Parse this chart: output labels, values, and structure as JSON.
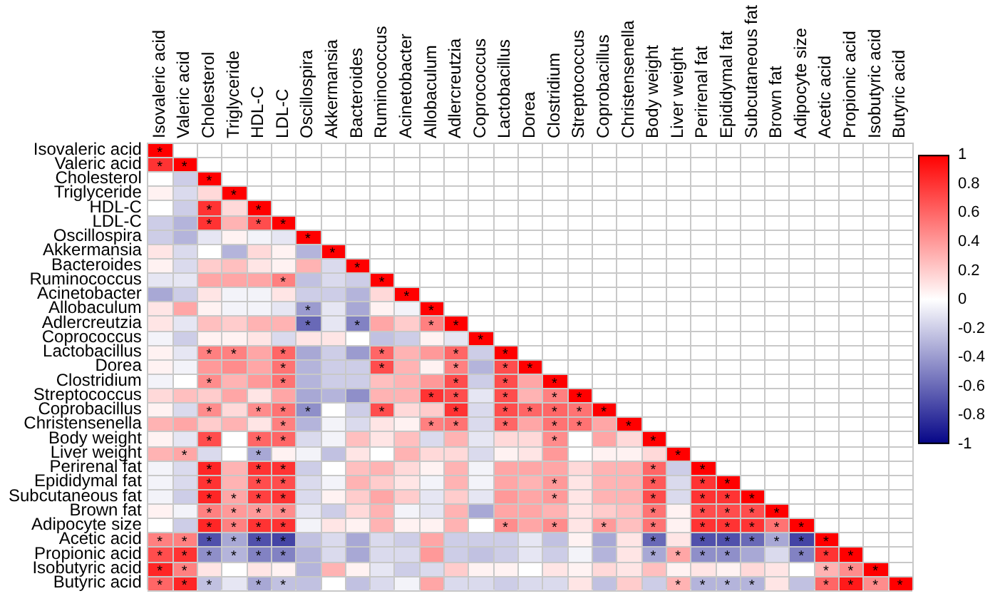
{
  "chart_data": {
    "type": "heatmap",
    "grid": true,
    "clim": [
      -1,
      1
    ],
    "cticks": [
      -1,
      -0.8,
      -0.6,
      -0.4,
      -0.2,
      0,
      0.2,
      0.4,
      0.6,
      0.8,
      1
    ],
    "categories": [
      "Isovaleric acid",
      "Valeric acid",
      "Cholesterol",
      "Triglyceride",
      "HDL-C",
      "LDL-C",
      "Oscillospira",
      "Akkermansia",
      "Bacteroides",
      "Ruminococcus",
      "Acinetobacter",
      "Allobaculum",
      "Adlercreutzia",
      "Coprococcus",
      "Lactobacillus",
      "Dorea",
      "Clostridium",
      "Streptococcus",
      "Coprobacillus",
      "Christensenella",
      "Body weight",
      "Liver weight",
      "Perirenal fat",
      "Epididymal fat",
      "Subcutaneous fat",
      "Brown fat",
      "Adipocyte size",
      "Acetic acid",
      "Propionic acid",
      "Isobutyric acid",
      "Butyric acid"
    ],
    "y_categories": [
      "Isovaleric acid",
      "Valeric acid",
      "Cholesterol",
      "Triglyceride",
      "HDL-C",
      "LDL-C",
      "Oscillospira",
      "Akkermansia",
      "Bacteroides",
      "Ruminococcus",
      "Acinetobacter",
      "Allobaculum",
      "Adlercreutzia",
      "Coprococcus",
      "Lactobacillus",
      "Dorea",
      "Clostridium",
      "Streptococcus",
      "Coprobacillus",
      "Christensenella",
      "Body weight",
      "Liver weight",
      "Perirenal fat",
      "Epididymal fat",
      "Subcutaneous fat",
      "Brown fat",
      "Adipocyte size",
      "Acetic acid",
      "Propionic acid",
      "Isobutyric acid",
      "Butyric acid"
    ],
    "cells": [
      [
        1,
        null,
        null,
        null,
        null,
        null,
        null,
        null,
        null,
        null,
        null,
        null,
        null,
        null,
        null,
        null,
        null,
        null,
        null,
        null,
        null,
        null,
        null,
        null,
        null,
        null,
        null,
        null,
        null,
        null,
        null
      ],
      [
        0.8,
        1,
        null,
        null,
        null,
        null,
        null,
        null,
        null,
        null,
        null,
        null,
        null,
        null,
        null,
        null,
        null,
        null,
        null,
        null,
        null,
        null,
        null,
        null,
        null,
        null,
        null,
        null,
        null,
        null,
        null
      ],
      [
        0,
        -0.2,
        1,
        null,
        null,
        null,
        null,
        null,
        null,
        null,
        null,
        null,
        null,
        null,
        null,
        null,
        null,
        null,
        null,
        null,
        null,
        null,
        null,
        null,
        null,
        null,
        null,
        null,
        null,
        null,
        null
      ],
      [
        0.05,
        -0.15,
        0.15,
        1,
        null,
        null,
        null,
        null,
        null,
        null,
        null,
        null,
        null,
        null,
        null,
        null,
        null,
        null,
        null,
        null,
        null,
        null,
        null,
        null,
        null,
        null,
        null,
        null,
        null,
        null,
        null
      ],
      [
        0,
        -0.2,
        0.8,
        0.15,
        1,
        null,
        null,
        null,
        null,
        null,
        null,
        null,
        null,
        null,
        null,
        null,
        null,
        null,
        null,
        null,
        null,
        null,
        null,
        null,
        null,
        null,
        null,
        null,
        null,
        null,
        null
      ],
      [
        -0.2,
        -0.3,
        0.8,
        0.3,
        0.7,
        1,
        null,
        null,
        null,
        null,
        null,
        null,
        null,
        null,
        null,
        null,
        null,
        null,
        null,
        null,
        null,
        null,
        null,
        null,
        null,
        null,
        null,
        null,
        null,
        null,
        null
      ],
      [
        -0.2,
        -0.3,
        -0.1,
        0.05,
        -0.05,
        -0.1,
        1,
        null,
        null,
        null,
        null,
        null,
        null,
        null,
        null,
        null,
        null,
        null,
        null,
        null,
        null,
        null,
        null,
        null,
        null,
        null,
        null,
        null,
        null,
        null,
        null
      ],
      [
        0.1,
        -0.15,
        0,
        -0.3,
        0.15,
        0.05,
        -0.3,
        1,
        null,
        null,
        null,
        null,
        null,
        null,
        null,
        null,
        null,
        null,
        null,
        null,
        null,
        null,
        null,
        null,
        null,
        null,
        null,
        null,
        null,
        null,
        null
      ],
      [
        0.05,
        -0.15,
        0.2,
        0.25,
        0.1,
        0.05,
        0.3,
        -0.15,
        1,
        null,
        null,
        null,
        null,
        null,
        null,
        null,
        null,
        null,
        null,
        null,
        null,
        null,
        null,
        null,
        null,
        null,
        null,
        null,
        null,
        null,
        null
      ],
      [
        -0.1,
        -0.1,
        0.35,
        0.35,
        0.35,
        0.5,
        -0.25,
        -0.15,
        -0.2,
        1,
        null,
        null,
        null,
        null,
        null,
        null,
        null,
        null,
        null,
        null,
        null,
        null,
        null,
        null,
        null,
        null,
        null,
        null,
        null,
        null,
        null
      ],
      [
        -0.35,
        -0.2,
        0.1,
        -0.05,
        -0.05,
        0.1,
        -0.2,
        -0.2,
        -0.3,
        0.15,
        1,
        null,
        null,
        null,
        null,
        null,
        null,
        null,
        null,
        null,
        null,
        null,
        null,
        null,
        null,
        null,
        null,
        null,
        null,
        null,
        null
      ],
      [
        0.1,
        0.35,
        0.05,
        -0.05,
        -0.05,
        -0.1,
        -0.4,
        -0.1,
        -0.35,
        0.05,
        -0.05,
        1,
        null,
        null,
        null,
        null,
        null,
        null,
        null,
        null,
        null,
        null,
        null,
        null,
        null,
        null,
        null,
        null,
        null,
        null,
        null
      ],
      [
        0.1,
        -0.1,
        0.25,
        0.2,
        0.3,
        0.3,
        -0.6,
        -0.1,
        -0.5,
        0.35,
        0.2,
        0.5,
        1,
        null,
        null,
        null,
        null,
        null,
        null,
        null,
        null,
        null,
        null,
        null,
        null,
        null,
        null,
        null,
        null,
        null,
        null
      ],
      [
        -0.05,
        -0.2,
        0.05,
        0.05,
        0.1,
        -0.15,
        0.1,
        0.1,
        0,
        -0.25,
        -0.2,
        0.05,
        -0.1,
        1,
        null,
        null,
        null,
        null,
        null,
        null,
        null,
        null,
        null,
        null,
        null,
        null,
        null,
        null,
        null,
        null,
        null
      ],
      [
        0.05,
        -0.1,
        0.5,
        0.5,
        0.35,
        0.6,
        -0.35,
        -0.2,
        -0.4,
        0.6,
        0.3,
        0.4,
        0.6,
        -0.2,
        1,
        null,
        null,
        null,
        null,
        null,
        null,
        null,
        null,
        null,
        null,
        null,
        null,
        null,
        null,
        null,
        null
      ],
      [
        0.05,
        -0.05,
        0.4,
        0.45,
        0.35,
        0.55,
        -0.3,
        -0.2,
        -0.2,
        0.7,
        0.3,
        0.05,
        0.5,
        -0.3,
        0.7,
        1,
        null,
        null,
        null,
        null,
        null,
        null,
        null,
        null,
        null,
        null,
        null,
        null,
        null,
        null,
        null
      ],
      [
        -0.05,
        0,
        0.45,
        0.3,
        0.4,
        0.55,
        -0.3,
        -0.2,
        -0.2,
        0.25,
        0.3,
        0.4,
        0.7,
        -0.2,
        0.7,
        0.35,
        1,
        null,
        null,
        null,
        null,
        null,
        null,
        null,
        null,
        null,
        null,
        null,
        null,
        null,
        null
      ],
      [
        0.15,
        0.25,
        0.2,
        0.35,
        0.1,
        0.35,
        -0.35,
        -0.3,
        -0.45,
        0.3,
        0.3,
        0.8,
        0.7,
        -0.1,
        0.7,
        0.3,
        0.5,
        1,
        null,
        null,
        null,
        null,
        null,
        null,
        null,
        null,
        null,
        null,
        null,
        null,
        null
      ],
      [
        0.05,
        -0.15,
        0.45,
        0.15,
        0.45,
        0.55,
        -0.45,
        0,
        -0.2,
        0.7,
        0.15,
        0.2,
        0.8,
        -0.15,
        0.7,
        0.6,
        0.6,
        0.55,
        1,
        null,
        null,
        null,
        null,
        null,
        null,
        null,
        null,
        null,
        null,
        null,
        null
      ],
      [
        0.3,
        0.35,
        0.2,
        0.3,
        0.1,
        0.5,
        -0.3,
        -0.05,
        -0.15,
        0.1,
        0.05,
        0.5,
        0.55,
        -0.15,
        0.6,
        0.35,
        0.55,
        0.55,
        0.35,
        1,
        null,
        null,
        null,
        null,
        null,
        null,
        null,
        null,
        null,
        null,
        null
      ],
      [
        0.05,
        -0.1,
        0.7,
        0,
        0.6,
        0.6,
        -0.15,
        -0.05,
        0.25,
        0.1,
        0.25,
        -0.15,
        0.3,
        -0.1,
        0.15,
        0.15,
        0.45,
        0,
        0.35,
        0.15,
        1,
        null,
        null,
        null,
        null,
        null,
        null,
        null,
        null,
        null,
        null
      ],
      [
        0.3,
        0.35,
        -0.15,
        0,
        -0.35,
        0.05,
        -0.05,
        -0.25,
        0.1,
        0,
        0.3,
        0.15,
        0.15,
        -0.15,
        0.05,
        0.1,
        0.4,
        0,
        0.05,
        0.05,
        0.15,
        1,
        null,
        null,
        null,
        null,
        null,
        null,
        null,
        null,
        null
      ],
      [
        -0.05,
        -0.15,
        0.85,
        0.3,
        0.8,
        0.8,
        -0.2,
        0,
        0.25,
        0.3,
        0.15,
        0.05,
        0.3,
        -0.05,
        0.35,
        0.35,
        0.35,
        0.15,
        0.3,
        0.3,
        0.6,
        -0.2,
        1,
        null,
        null,
        null,
        null,
        null,
        null,
        null,
        null
      ],
      [
        -0.05,
        -0.15,
        0.8,
        0.3,
        0.7,
        0.7,
        -0.15,
        -0.05,
        0.3,
        0.2,
        0.1,
        -0.05,
        0.3,
        -0.05,
        0.35,
        0.3,
        0.4,
        0.1,
        0.3,
        0.3,
        0.65,
        -0.15,
        0.8,
        1,
        null,
        null,
        null,
        null,
        null,
        null,
        null
      ],
      [
        -0.05,
        -0.2,
        0.85,
        0.35,
        0.75,
        0.8,
        -0.15,
        0.05,
        0.2,
        0.35,
        0.2,
        -0.1,
        0.2,
        -0.1,
        0.4,
        0.35,
        0.4,
        0.1,
        0.3,
        0.3,
        0.7,
        -0.15,
        0.8,
        0.8,
        1,
        null,
        null,
        null,
        null,
        null,
        null
      ],
      [
        0.05,
        -0.05,
        0.5,
        0.4,
        0.4,
        0.45,
        -0.1,
        -0.2,
        0.15,
        0.3,
        -0.05,
        -0.1,
        0.3,
        -0.35,
        0.35,
        0.35,
        0.3,
        0.1,
        0.2,
        0.25,
        0.55,
        0.05,
        0.7,
        0.7,
        0.7,
        1,
        null,
        null,
        null,
        null,
        null
      ],
      [
        0,
        -0.2,
        0.85,
        0.5,
        0.8,
        0.8,
        -0.05,
        0.1,
        0.05,
        0.3,
        0.05,
        0.05,
        0.3,
        0,
        0.45,
        0.35,
        0.45,
        0.1,
        0.4,
        0.25,
        0.55,
        0.05,
        0.8,
        0.8,
        0.8,
        0.55,
        1,
        null,
        null,
        null,
        null
      ],
      [
        0.5,
        0.5,
        -0.7,
        -0.35,
        -0.7,
        -0.75,
        -0.25,
        -0.15,
        -0.35,
        -0.15,
        -0.2,
        0.35,
        -0.2,
        -0.2,
        -0.2,
        -0.1,
        -0.25,
        0.05,
        -0.35,
        0.1,
        -0.6,
        0.1,
        -0.7,
        -0.7,
        -0.6,
        -0.35,
        -0.75,
        1,
        null,
        null,
        null
      ],
      [
        0.7,
        0.8,
        -0.45,
        -0.3,
        -0.5,
        -0.5,
        -0.3,
        -0.15,
        -0.35,
        -0.15,
        -0.15,
        0.4,
        -0.2,
        -0.25,
        -0.2,
        -0.1,
        -0.2,
        -0.05,
        -0.3,
        0.1,
        -0.35,
        0.35,
        -0.45,
        -0.45,
        -0.35,
        -0.15,
        -0.5,
        0.8,
        1,
        null,
        null
      ],
      [
        0.85,
        0.5,
        0.1,
        0,
        0.1,
        0.05,
        -0.3,
        0.3,
        0.05,
        -0.1,
        -0.2,
        -0.15,
        0.2,
        0.05,
        0.05,
        0,
        0.1,
        0.05,
        0.15,
        0.1,
        0.25,
        0.05,
        0.1,
        0.05,
        0.15,
        0.1,
        0,
        0.3,
        0.45,
        1,
        null
      ],
      [
        0.6,
        0.85,
        -0.25,
        -0.1,
        -0.35,
        -0.25,
        -0.25,
        0,
        -0.25,
        -0.15,
        -0.05,
        0.35,
        -0.15,
        -0.15,
        -0.2,
        -0.15,
        -0.15,
        0.1,
        -0.25,
        0.2,
        -0.2,
        0.3,
        -0.3,
        -0.3,
        -0.3,
        0.1,
        -0.25,
        0.6,
        0.9,
        0.45,
        1
      ]
    ],
    "cell_labels": [
      [
        "*",
        null,
        null,
        null,
        null,
        null,
        null,
        null,
        null,
        null,
        null,
        null,
        null,
        null,
        null,
        null,
        null,
        null,
        null,
        null,
        null,
        null,
        null,
        null,
        null,
        null,
        null,
        null,
        null,
        null,
        null
      ],
      [
        "*",
        "*",
        null,
        null,
        null,
        null,
        null,
        null,
        null,
        null,
        null,
        null,
        null,
        null,
        null,
        null,
        null,
        null,
        null,
        null,
        null,
        null,
        null,
        null,
        null,
        null,
        null,
        null,
        null,
        null,
        null
      ],
      [
        null,
        null,
        "*",
        null,
        null,
        null,
        null,
        null,
        null,
        null,
        null,
        null,
        null,
        null,
        null,
        null,
        null,
        null,
        null,
        null,
        null,
        null,
        null,
        null,
        null,
        null,
        null,
        null,
        null,
        null,
        null
      ],
      [
        null,
        null,
        null,
        "*",
        null,
        null,
        null,
        null,
        null,
        null,
        null,
        null,
        null,
        null,
        null,
        null,
        null,
        null,
        null,
        null,
        null,
        null,
        null,
        null,
        null,
        null,
        null,
        null,
        null,
        null,
        null
      ],
      [
        null,
        null,
        "*",
        null,
        "*",
        null,
        null,
        null,
        null,
        null,
        null,
        null,
        null,
        null,
        null,
        null,
        null,
        null,
        null,
        null,
        null,
        null,
        null,
        null,
        null,
        null,
        null,
        null,
        null,
        null,
        null
      ],
      [
        null,
        null,
        "*",
        null,
        "*",
        "*",
        null,
        null,
        null,
        null,
        null,
        null,
        null,
        null,
        null,
        null,
        null,
        null,
        null,
        null,
        null,
        null,
        null,
        null,
        null,
        null,
        null,
        null,
        null,
        null,
        null
      ],
      [
        null,
        null,
        null,
        null,
        null,
        null,
        "*",
        null,
        null,
        null,
        null,
        null,
        null,
        null,
        null,
        null,
        null,
        null,
        null,
        null,
        null,
        null,
        null,
        null,
        null,
        null,
        null,
        null,
        null,
        null,
        null
      ],
      [
        null,
        null,
        null,
        null,
        null,
        null,
        null,
        "*",
        null,
        null,
        null,
        null,
        null,
        null,
        null,
        null,
        null,
        null,
        null,
        null,
        null,
        null,
        null,
        null,
        null,
        null,
        null,
        null,
        null,
        null,
        null
      ],
      [
        null,
        null,
        null,
        null,
        null,
        null,
        null,
        null,
        "*",
        null,
        null,
        null,
        null,
        null,
        null,
        null,
        null,
        null,
        null,
        null,
        null,
        null,
        null,
        null,
        null,
        null,
        null,
        null,
        null,
        null,
        null
      ],
      [
        null,
        null,
        null,
        null,
        null,
        "*",
        null,
        null,
        null,
        "*",
        null,
        null,
        null,
        null,
        null,
        null,
        null,
        null,
        null,
        null,
        null,
        null,
        null,
        null,
        null,
        null,
        null,
        null,
        null,
        null,
        null
      ],
      [
        null,
        null,
        null,
        null,
        null,
        null,
        null,
        null,
        null,
        null,
        "*",
        null,
        null,
        null,
        null,
        null,
        null,
        null,
        null,
        null,
        null,
        null,
        null,
        null,
        null,
        null,
        null,
        null,
        null,
        null,
        null
      ],
      [
        null,
        null,
        null,
        null,
        null,
        null,
        "*",
        null,
        null,
        null,
        null,
        "*",
        null,
        null,
        null,
        null,
        null,
        null,
        null,
        null,
        null,
        null,
        null,
        null,
        null,
        null,
        null,
        null,
        null,
        null,
        null
      ],
      [
        null,
        null,
        null,
        null,
        null,
        null,
        "*",
        null,
        "*",
        null,
        null,
        "*",
        "*",
        null,
        null,
        null,
        null,
        null,
        null,
        null,
        null,
        null,
        null,
        null,
        null,
        null,
        null,
        null,
        null,
        null,
        null
      ],
      [
        null,
        null,
        null,
        null,
        null,
        null,
        null,
        null,
        null,
        null,
        null,
        null,
        null,
        "*",
        null,
        null,
        null,
        null,
        null,
        null,
        null,
        null,
        null,
        null,
        null,
        null,
        null,
        null,
        null,
        null,
        null
      ],
      [
        null,
        null,
        "*",
        "*",
        null,
        "*",
        null,
        null,
        null,
        "*",
        null,
        null,
        "*",
        null,
        "*",
        null,
        null,
        null,
        null,
        null,
        null,
        null,
        null,
        null,
        null,
        null,
        null,
        null,
        null,
        null,
        null
      ],
      [
        null,
        null,
        null,
        null,
        null,
        "*",
        null,
        null,
        null,
        "*",
        null,
        null,
        "*",
        null,
        "*",
        "*",
        null,
        null,
        null,
        null,
        null,
        null,
        null,
        null,
        null,
        null,
        null,
        null,
        null,
        null,
        null
      ],
      [
        null,
        null,
        "*",
        null,
        null,
        "*",
        null,
        null,
        null,
        null,
        null,
        null,
        "*",
        null,
        "*",
        null,
        "*",
        null,
        null,
        null,
        null,
        null,
        null,
        null,
        null,
        null,
        null,
        null,
        null,
        null,
        null
      ],
      [
        null,
        null,
        null,
        null,
        null,
        null,
        null,
        null,
        null,
        null,
        null,
        "*",
        "*",
        null,
        "*",
        null,
        "*",
        "*",
        null,
        null,
        null,
        null,
        null,
        null,
        null,
        null,
        null,
        null,
        null,
        null,
        null
      ],
      [
        null,
        null,
        "*",
        null,
        "*",
        "*",
        "*",
        null,
        null,
        "*",
        null,
        null,
        "*",
        null,
        "*",
        "*",
        "*",
        "*",
        "*",
        null,
        null,
        null,
        null,
        null,
        null,
        null,
        null,
        null,
        null,
        null,
        null
      ],
      [
        null,
        null,
        null,
        null,
        null,
        "*",
        null,
        null,
        null,
        null,
        null,
        "*",
        "*",
        null,
        "*",
        null,
        "*",
        "*",
        null,
        "*",
        null,
        null,
        null,
        null,
        null,
        null,
        null,
        null,
        null,
        null,
        null
      ],
      [
        null,
        null,
        "*",
        null,
        "*",
        "*",
        null,
        null,
        null,
        null,
        null,
        null,
        null,
        null,
        null,
        null,
        "*",
        null,
        null,
        null,
        "*",
        null,
        null,
        null,
        null,
        null,
        null,
        null,
        null,
        null,
        null
      ],
      [
        null,
        "*",
        null,
        null,
        "*",
        null,
        null,
        null,
        null,
        null,
        null,
        null,
        null,
        null,
        null,
        null,
        null,
        null,
        null,
        null,
        null,
        "*",
        null,
        null,
        null,
        null,
        null,
        null,
        null,
        null,
        null
      ],
      [
        null,
        null,
        "*",
        null,
        "*",
        "*",
        null,
        null,
        null,
        null,
        null,
        null,
        null,
        null,
        null,
        null,
        null,
        null,
        null,
        null,
        "*",
        null,
        "*",
        null,
        null,
        null,
        null,
        null,
        null,
        null,
        null
      ],
      [
        null,
        null,
        "*",
        null,
        "*",
        "*",
        null,
        null,
        null,
        null,
        null,
        null,
        null,
        null,
        null,
        null,
        "*",
        null,
        null,
        null,
        "*",
        null,
        "*",
        "*",
        null,
        null,
        null,
        null,
        null,
        null,
        null
      ],
      [
        null,
        null,
        "*",
        "*",
        "*",
        "*",
        null,
        null,
        null,
        null,
        null,
        null,
        null,
        null,
        null,
        null,
        "*",
        null,
        null,
        null,
        "*",
        null,
        "*",
        "*",
        "*",
        null,
        null,
        null,
        null,
        null,
        null
      ],
      [
        null,
        null,
        "*",
        "*",
        "*",
        "*",
        null,
        null,
        null,
        null,
        null,
        null,
        null,
        null,
        null,
        null,
        null,
        null,
        null,
        null,
        "*",
        null,
        "*",
        "*",
        "*",
        "*",
        null,
        null,
        null,
        null,
        null
      ],
      [
        null,
        null,
        "*",
        "*",
        "*",
        "*",
        null,
        null,
        null,
        null,
        null,
        null,
        null,
        null,
        "*",
        null,
        "*",
        null,
        "*",
        null,
        "*",
        null,
        "*",
        "*",
        "*",
        "*",
        "*",
        null,
        null,
        null,
        null
      ],
      [
        "*",
        "*",
        "*",
        "*",
        "*",
        "*",
        null,
        null,
        null,
        null,
        null,
        null,
        null,
        null,
        null,
        null,
        null,
        null,
        null,
        null,
        "*",
        null,
        "*",
        "*",
        "*",
        "*",
        "*",
        "*",
        null,
        null,
        null
      ],
      [
        "*",
        "*",
        "*",
        "*",
        "*",
        "*",
        null,
        null,
        null,
        null,
        null,
        null,
        null,
        null,
        null,
        null,
        null,
        null,
        null,
        null,
        "*",
        "*",
        "*",
        "*",
        null,
        null,
        "*",
        "*",
        "*",
        null,
        null
      ],
      [
        "*",
        "*",
        null,
        null,
        null,
        null,
        null,
        null,
        null,
        null,
        null,
        null,
        null,
        null,
        null,
        null,
        null,
        null,
        null,
        null,
        null,
        null,
        null,
        null,
        null,
        null,
        null,
        "*",
        "*",
        "*",
        null
      ],
      [
        "*",
        "*",
        "*",
        null,
        "*",
        "*",
        null,
        null,
        null,
        null,
        null,
        null,
        null,
        null,
        null,
        null,
        null,
        null,
        null,
        null,
        null,
        "*",
        "*",
        "*",
        "*",
        null,
        null,
        "*",
        "*",
        "*",
        "*"
      ]
    ]
  }
}
